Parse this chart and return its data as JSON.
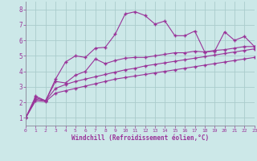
{
  "xlabel": "Windchill (Refroidissement éolien,°C)",
  "bg_color": "#cce8e8",
  "grid_color": "#aacccc",
  "line_color": "#993399",
  "xlim": [
    0,
    23
  ],
  "ylim": [
    0.5,
    8.5
  ],
  "xticks": [
    0,
    1,
    2,
    3,
    4,
    5,
    6,
    7,
    8,
    9,
    10,
    11,
    12,
    13,
    14,
    15,
    16,
    17,
    18,
    19,
    20,
    21,
    22,
    23
  ],
  "yticks": [
    1,
    2,
    3,
    4,
    5,
    6,
    7,
    8
  ],
  "lines": [
    [
      0,
      1.0,
      1,
      2.4,
      2,
      2.1,
      3,
      3.5,
      4,
      4.6,
      5,
      5.0,
      6,
      4.9,
      7,
      5.5,
      8,
      5.55,
      9,
      6.4,
      10,
      7.7,
      11,
      7.85,
      12,
      7.6,
      13,
      7.05,
      14,
      7.25,
      15,
      6.3,
      16,
      6.3,
      17,
      6.6,
      18,
      5.25,
      19,
      5.3,
      20,
      6.55,
      21,
      6.0,
      22,
      6.25,
      23,
      5.6
    ],
    [
      0,
      1.0,
      1,
      2.3,
      2,
      2.1,
      3,
      3.35,
      4,
      3.25,
      5,
      3.75,
      6,
      4.0,
      7,
      4.8,
      8,
      4.5,
      9,
      4.7,
      10,
      4.85,
      11,
      4.9,
      12,
      4.9,
      13,
      5.0,
      14,
      5.1,
      15,
      5.2,
      16,
      5.2,
      17,
      5.3,
      18,
      5.25,
      19,
      5.35,
      20,
      5.4,
      21,
      5.5,
      22,
      5.6,
      23,
      5.6
    ],
    [
      0,
      1.0,
      1,
      2.2,
      2,
      2.1,
      3,
      2.9,
      4,
      3.15,
      5,
      3.35,
      6,
      3.5,
      7,
      3.65,
      8,
      3.8,
      9,
      3.95,
      10,
      4.1,
      11,
      4.2,
      12,
      4.35,
      13,
      4.45,
      14,
      4.55,
      15,
      4.65,
      16,
      4.75,
      17,
      4.85,
      18,
      4.95,
      19,
      5.05,
      20,
      5.15,
      21,
      5.25,
      22,
      5.35,
      23,
      5.45
    ],
    [
      0,
      1.0,
      1,
      2.1,
      2,
      2.05,
      3,
      2.6,
      4,
      2.75,
      5,
      2.9,
      6,
      3.05,
      7,
      3.2,
      8,
      3.35,
      9,
      3.5,
      10,
      3.6,
      11,
      3.7,
      12,
      3.8,
      13,
      3.9,
      14,
      4.0,
      15,
      4.1,
      16,
      4.2,
      17,
      4.3,
      18,
      4.4,
      19,
      4.5,
      20,
      4.6,
      21,
      4.7,
      22,
      4.8,
      23,
      4.9
    ]
  ]
}
